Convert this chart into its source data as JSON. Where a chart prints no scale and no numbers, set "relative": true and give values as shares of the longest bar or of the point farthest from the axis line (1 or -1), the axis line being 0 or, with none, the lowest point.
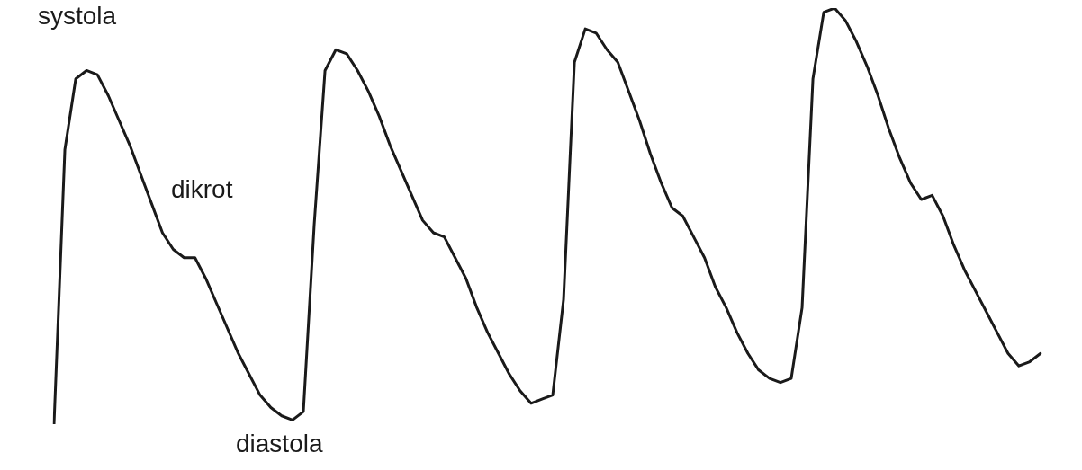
{
  "chart_data": {
    "type": "line",
    "relative": true,
    "legend": false,
    "marker": "none",
    "line_style": "solid",
    "categories": [
      null,
      null,
      null,
      null,
      null,
      null,
      null,
      null,
      null,
      null,
      null,
      null,
      null,
      null,
      null,
      null,
      null,
      null,
      null,
      null,
      null,
      null,
      null,
      null,
      null,
      null,
      null,
      null,
      null,
      null,
      null,
      null,
      null,
      null,
      null,
      null,
      null,
      null,
      null,
      null,
      null,
      null,
      null,
      null,
      null,
      null,
      null,
      null,
      null,
      null,
      null,
      null,
      null,
      null,
      null,
      null,
      null,
      null,
      null,
      null,
      null,
      null,
      null,
      null,
      null,
      null,
      null,
      null,
      null,
      null,
      null,
      null,
      null,
      null,
      null,
      null,
      null,
      null,
      null,
      null,
      null,
      null,
      null,
      null,
      null,
      null,
      null,
      null,
      null,
      null,
      null,
      null
    ],
    "series": [
      {
        "color": "#1a1a1a",
        "values": [
          0,
          0.66,
          0.83,
          0.85,
          0.84,
          0.79,
          0.73,
          0.67,
          0.6,
          0.53,
          0.46,
          0.42,
          0.4,
          0.4,
          0.35,
          0.29,
          0.23,
          0.17,
          0.12,
          0.07,
          0.04,
          0.02,
          0.01,
          0.03,
          0.48,
          0.85,
          0.9,
          0.89,
          0.85,
          0.8,
          0.74,
          0.67,
          0.61,
          0.55,
          0.49,
          0.46,
          0.45,
          0.4,
          0.35,
          0.28,
          0.22,
          0.17,
          0.12,
          0.08,
          0.05,
          0.06,
          0.07,
          0.3,
          0.87,
          0.95,
          0.94,
          0.9,
          0.87,
          0.8,
          0.73,
          0.65,
          0.58,
          0.52,
          0.5,
          0.45,
          0.4,
          0.33,
          0.28,
          0.22,
          0.17,
          0.13,
          0.11,
          0.1,
          0.11,
          0.28,
          0.83,
          0.99,
          1,
          0.97,
          0.92,
          0.86,
          0.79,
          0.71,
          0.64,
          0.58,
          0.54,
          0.55,
          0.5,
          0.43,
          0.37,
          0.32,
          0.27,
          0.22,
          0.17,
          0.14,
          0.15,
          0.17
        ]
      }
    ],
    "annotations": [
      "systola",
      "dikrot",
      "diastola"
    ]
  }
}
